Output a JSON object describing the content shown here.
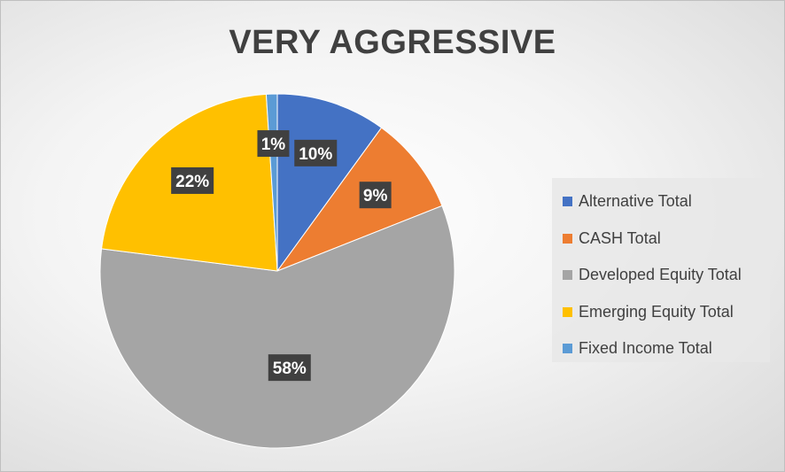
{
  "chart_data": {
    "type": "pie",
    "title": "VERY AGGRESSIVE",
    "legend_position": "right",
    "slices": [
      {
        "name": "Alternative Total",
        "value": 10,
        "label": "10%",
        "color": "#4472c4"
      },
      {
        "name": "CASH Total",
        "value": 9,
        "label": "9%",
        "color": "#ed7d31"
      },
      {
        "name": "Developed Equity Total",
        "value": 58,
        "label": "58%",
        "color": "#a5a5a5"
      },
      {
        "name": "Emerging Equity Total",
        "value": 22,
        "label": "22%",
        "color": "#ffc000"
      },
      {
        "name": "Fixed Income Total",
        "value": 1,
        "label": "1%",
        "color": "#5b9bd5"
      }
    ]
  }
}
